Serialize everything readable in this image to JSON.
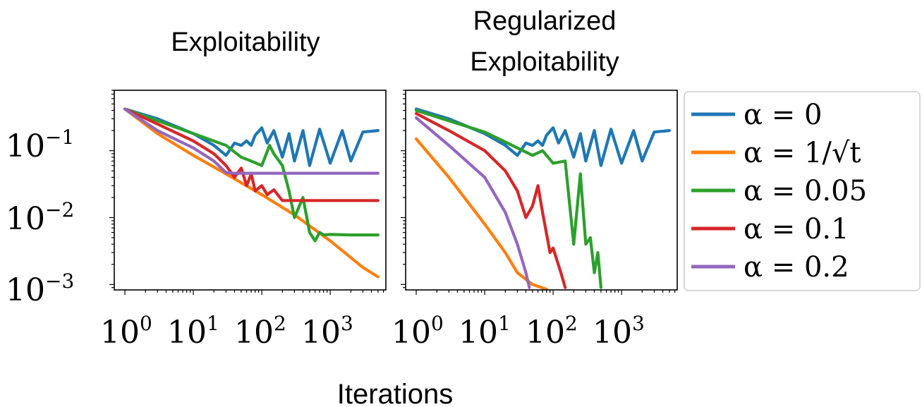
{
  "figure": {
    "xlabel": "Iterations"
  },
  "legend": {
    "placement": "right",
    "entries": [
      {
        "label": "α = 0",
        "color": "#1f77b4"
      },
      {
        "label": "α = 1/√t",
        "color": "#ff7f0e"
      },
      {
        "label": "α = 0.05",
        "color": "#2ca02c"
      },
      {
        "label": "α = 0.1",
        "color": "#d62728"
      },
      {
        "label": "α = 0.2",
        "color": "#9467bd"
      }
    ]
  },
  "chart_data": [
    {
      "type": "line",
      "title": "Exploitability",
      "xscale": "log",
      "yscale": "log",
      "xlim": [
        0.7,
        6500
      ],
      "ylim": [
        0.00083,
        0.8
      ],
      "x_ticks": [
        "10^0",
        "10^1",
        "10^2",
        "10^3"
      ],
      "y_ticks": [
        "10^-1",
        "10^-2",
        "10^-3"
      ],
      "series": [
        {
          "name": "α = 0",
          "color": "#1f77b4",
          "x": [
            1,
            3,
            10,
            20,
            30,
            40,
            50,
            60,
            70,
            80,
            100,
            120,
            150,
            200,
            250,
            300,
            400,
            500,
            700,
            1000,
            1500,
            2000,
            3000,
            5000
          ],
          "y": [
            0.42,
            0.3,
            0.18,
            0.12,
            0.085,
            0.13,
            0.12,
            0.14,
            0.12,
            0.17,
            0.22,
            0.13,
            0.2,
            0.08,
            0.18,
            0.07,
            0.2,
            0.06,
            0.21,
            0.065,
            0.2,
            0.07,
            0.19,
            0.2
          ]
        },
        {
          "name": "α = 1/√t",
          "color": "#ff7f0e",
          "x": [
            1,
            3,
            10,
            30,
            100,
            300,
            1000,
            3000,
            5000
          ],
          "y": [
            0.42,
            0.18,
            0.085,
            0.045,
            0.022,
            0.011,
            0.0045,
            0.0018,
            0.0013
          ]
        },
        {
          "name": "α = 0.05",
          "color": "#2ca02c",
          "x": [
            1,
            3,
            10,
            30,
            50,
            70,
            100,
            130,
            150,
            200,
            250,
            300,
            400,
            500,
            600,
            700,
            800,
            1000,
            2000,
            5000
          ],
          "y": [
            0.42,
            0.28,
            0.18,
            0.12,
            0.08,
            0.07,
            0.06,
            0.12,
            0.09,
            0.06,
            0.025,
            0.01,
            0.02,
            0.006,
            0.0045,
            0.006,
            0.0055,
            0.0056,
            0.0055,
            0.0055
          ]
        },
        {
          "name": "α = 0.1",
          "color": "#d62728",
          "x": [
            1,
            3,
            10,
            20,
            30,
            40,
            50,
            60,
            70,
            80,
            100,
            120,
            150,
            200,
            300,
            500,
            1000,
            5000
          ],
          "y": [
            0.42,
            0.25,
            0.14,
            0.09,
            0.06,
            0.04,
            0.055,
            0.03,
            0.045,
            0.025,
            0.03,
            0.022,
            0.026,
            0.018,
            0.018,
            0.018,
            0.018,
            0.018
          ]
        },
        {
          "name": "α = 0.2",
          "color": "#9467bd",
          "x": [
            1,
            3,
            10,
            20,
            30,
            40,
            100,
            1000,
            5000
          ],
          "y": [
            0.42,
            0.2,
            0.11,
            0.07,
            0.047,
            0.046,
            0.046,
            0.046,
            0.046
          ]
        }
      ]
    },
    {
      "type": "line",
      "title": "Regularized Exploitability",
      "xscale": "log",
      "yscale": "log",
      "xlim": [
        0.7,
        6500
      ],
      "ylim": [
        0.00083,
        0.8
      ],
      "x_ticks": [
        "10^0",
        "10^1",
        "10^2",
        "10^3"
      ],
      "y_ticks": [],
      "series": [
        {
          "name": "α = 0",
          "color": "#1f77b4",
          "x": [
            1,
            3,
            10,
            20,
            30,
            40,
            50,
            60,
            70,
            80,
            100,
            120,
            150,
            200,
            250,
            300,
            400,
            500,
            700,
            1000,
            1500,
            2000,
            3000,
            5000
          ],
          "y": [
            0.42,
            0.3,
            0.18,
            0.12,
            0.085,
            0.13,
            0.12,
            0.14,
            0.12,
            0.17,
            0.22,
            0.13,
            0.2,
            0.08,
            0.18,
            0.07,
            0.2,
            0.06,
            0.21,
            0.065,
            0.2,
            0.07,
            0.19,
            0.2
          ]
        },
        {
          "name": "α = 1/√t",
          "color": "#ff7f0e",
          "x": [
            1,
            3,
            10,
            20,
            30,
            50,
            80
          ],
          "y": [
            0.15,
            0.04,
            0.008,
            0.003,
            0.0015,
            0.001,
            0.00085
          ]
        },
        {
          "name": "α = 0.05",
          "color": "#2ca02c",
          "x": [
            1,
            3,
            10,
            30,
            50,
            70,
            100,
            150,
            200,
            250,
            300,
            350,
            400,
            450,
            500
          ],
          "y": [
            0.4,
            0.28,
            0.19,
            0.11,
            0.085,
            0.1,
            0.065,
            0.07,
            0.004,
            0.045,
            0.004,
            0.005,
            0.0015,
            0.003,
            0.0009
          ]
        },
        {
          "name": "α = 0.1",
          "color": "#d62728",
          "x": [
            1,
            3,
            10,
            20,
            30,
            40,
            50,
            60,
            70,
            90,
            100,
            130,
            150
          ],
          "y": [
            0.36,
            0.2,
            0.1,
            0.05,
            0.025,
            0.01,
            0.015,
            0.03,
            0.012,
            0.003,
            0.0035,
            0.0015,
            0.0009
          ]
        },
        {
          "name": "α = 0.2",
          "color": "#9467bd",
          "x": [
            1,
            3,
            10,
            20,
            30,
            40,
            45
          ],
          "y": [
            0.31,
            0.12,
            0.04,
            0.012,
            0.004,
            0.0015,
            0.0009
          ]
        }
      ]
    }
  ]
}
